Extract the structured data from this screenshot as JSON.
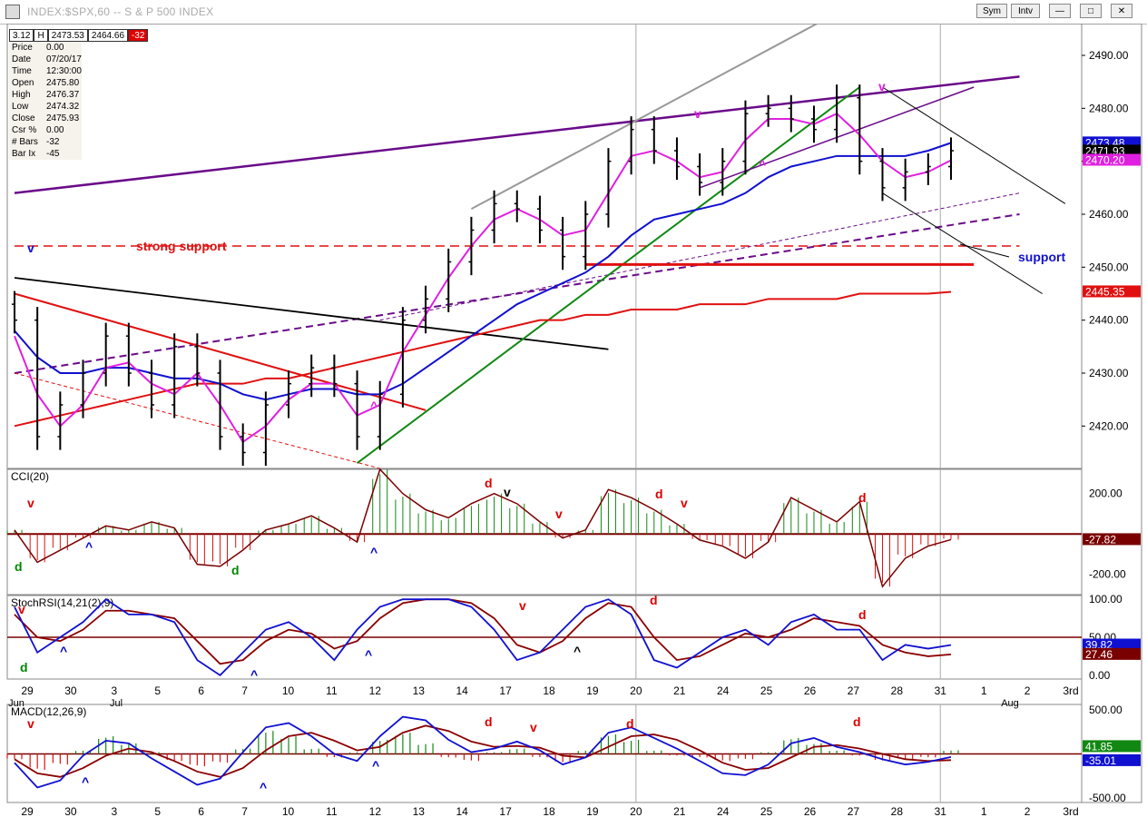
{
  "window": {
    "title": "INDEX:$SPX,60 -- S & P 500 INDEX",
    "buttons": [
      "Sym",
      "Intv"
    ]
  },
  "header_values": [
    "3.12",
    "H",
    "2473.53",
    "2464.66",
    "-32"
  ],
  "info": [
    {
      "label": "Price",
      "value": "0.00"
    },
    {
      "label": "Date",
      "value": "07/20/17"
    },
    {
      "label": "Time",
      "value": "12:30:00"
    },
    {
      "label": "Open",
      "value": "2475.80"
    },
    {
      "label": "High",
      "value": "2476.37"
    },
    {
      "label": "Low",
      "value": "2474.32"
    },
    {
      "label": "Close",
      "value": "2475.93"
    },
    {
      "label": "Csr %",
      "value": "0.00"
    },
    {
      "label": "# Bars",
      "value": "-32"
    },
    {
      "label": "Bar Ix",
      "value": "-45"
    }
  ],
  "colors": {
    "price": "#000000",
    "ma_fast": "#e020e0",
    "ma_mid": "#1010d0",
    "ma_slow": "#e01010",
    "channel": "#6a0a8a",
    "trend": "#118811",
    "hist_up": "#118811",
    "hist_down": "#dd1111",
    "signal": "#8b0000",
    "axis_tag_dark": "#7a0000"
  },
  "chart_data": [
    {
      "type": "line",
      "title": "INDEX:$SPX,60 -- S & P 500 INDEX",
      "ylim": [
        2412,
        2496
      ],
      "yticks": [
        "2490.00",
        "2480.00",
        "2470.00",
        "2460.00",
        "2450.00",
        "2440.00",
        "2430.00",
        "2420.00"
      ],
      "ytick_values": [
        2490,
        2480,
        2470,
        2460,
        2450,
        2440,
        2430,
        2420
      ],
      "xticks": [
        "29",
        "30",
        "3",
        "5",
        "6",
        "7",
        "10",
        "11",
        "12",
        "13",
        "14",
        "17",
        "18",
        "19",
        "20",
        "21",
        "24",
        "25",
        "26",
        "27",
        "28",
        "31",
        "1",
        "2",
        "3rd"
      ],
      "months": [
        "Jun",
        "Jul",
        "Aug"
      ],
      "axis_tags": [
        {
          "text": "2473.48",
          "value": 2473.48,
          "color": "#1010d0"
        },
        {
          "text": "2471.93",
          "value": 2471.93,
          "color": "#ffffff"
        },
        {
          "text": "2470.20",
          "value": 2470.2,
          "color": "#e020e0"
        },
        {
          "text": "2445.35",
          "value": 2445.35,
          "color": "#e01010"
        }
      ],
      "annotations": [
        {
          "text": "strong support",
          "color": "#dd1111"
        },
        {
          "text": "support",
          "color": "#1010d0"
        },
        {
          "text": "v",
          "color": "#1010d0"
        },
        {
          "text": "^",
          "color": "#e020e0"
        },
        {
          "text": "v",
          "color": "#e020e0"
        },
        {
          "text": "^",
          "color": "#e020e0"
        },
        {
          "text": "v",
          "color": "#e020e0"
        }
      ],
      "series": [
        {
          "values_hint": "hourly OHLC bars",
          "close": [
            2440,
            2418,
            2424,
            2430,
            2437,
            2430,
            2424,
            2435,
            2430,
            2418,
            2415,
            2424,
            2428,
            2431,
            2428,
            2418,
            2426,
            2440,
            2444,
            2451,
            2457,
            2462,
            2461,
            2457,
            2452,
            2460,
            2470,
            2476,
            2472,
            2469,
            2466,
            2470,
            2479,
            2480,
            2478,
            2476,
            2482,
            2470,
            2465,
            2468,
            2469,
            2472
          ]
        },
        {
          "values": [
            2437,
            2426,
            2420,
            2424,
            2431,
            2432,
            2428,
            2426,
            2430,
            2424,
            2417,
            2420,
            2425,
            2428,
            2428,
            2422,
            2424,
            2434,
            2441,
            2448,
            2454,
            2459,
            2461,
            2459,
            2456,
            2457,
            2464,
            2471,
            2472,
            2470,
            2467,
            2468,
            2474,
            2478,
            2478,
            2477,
            2479,
            2475,
            2470,
            2467,
            2468,
            2470.2
          ]
        },
        {
          "values": [
            2438,
            2433,
            2430,
            2430,
            2431,
            2431,
            2430,
            2429,
            2429,
            2428,
            2426,
            2425,
            2426,
            2427,
            2427,
            2426,
            2426,
            2428,
            2431,
            2434,
            2437,
            2440,
            2443,
            2445,
            2447,
            2449,
            2452,
            2456,
            2459,
            2460,
            2461,
            2462,
            2464,
            2467,
            2469,
            2470,
            2471,
            2471,
            2471,
            2471,
            2472,
            2473.48
          ]
        },
        {
          "values": [
            2420,
            2421,
            2422,
            2423,
            2424,
            2425,
            2426,
            2427,
            2428,
            2428,
            2428,
            2429,
            2429,
            2430,
            2431,
            2432,
            2433,
            2434,
            2435,
            2436,
            2437,
            2438,
            2439,
            2440,
            2440,
            2441,
            2441,
            2442,
            2442,
            2442,
            2443,
            2443,
            2443,
            2444,
            2444,
            2444,
            2444,
            2445,
            2445,
            2445,
            2445,
            2445.35
          ]
        }
      ]
    },
    {
      "type": "bar",
      "title": "CCI(20)",
      "yticks": [
        "200.00",
        "-200.00"
      ],
      "ytick_values": [
        200,
        -200
      ],
      "ylim": [
        -300,
        320
      ],
      "axis_tags": [
        {
          "text": "-27.82",
          "value": -27.82
        }
      ],
      "annotations": [
        "v",
        "d",
        "^",
        "d",
        "^",
        "d",
        "v",
        "v",
        "d",
        "v",
        "d"
      ],
      "values": [
        20,
        -140,
        -80,
        -20,
        40,
        20,
        60,
        30,
        -150,
        -160,
        -80,
        20,
        50,
        90,
        30,
        -40,
        320,
        200,
        120,
        80,
        150,
        200,
        150,
        60,
        -20,
        20,
        220,
        180,
        120,
        50,
        -30,
        -60,
        -120,
        -40,
        180,
        120,
        60,
        160,
        -260,
        -120,
        -60,
        -27.82
      ]
    },
    {
      "type": "line",
      "title": "StochRSI(14,21(2),9)",
      "yticks": [
        "100.00",
        "50.00",
        "0.00"
      ],
      "ytick_values": [
        100,
        50,
        0
      ],
      "ylim": [
        -5,
        105
      ],
      "axis_tags": [
        {
          "text": "39.82",
          "value": 39.82
        },
        {
          "text": "27.46",
          "value": 27.46
        }
      ],
      "annotations": [
        "v",
        "d",
        "^",
        "^",
        "^",
        "v",
        "^",
        "d",
        "d"
      ],
      "series": [
        {
          "values": [
            90,
            30,
            50,
            70,
            100,
            80,
            80,
            70,
            20,
            0,
            30,
            60,
            70,
            50,
            20,
            60,
            90,
            100,
            100,
            100,
            90,
            60,
            20,
            30,
            60,
            90,
            100,
            80,
            20,
            10,
            30,
            50,
            60,
            40,
            70,
            80,
            60,
            60,
            20,
            40,
            35,
            39.82
          ]
        },
        {
          "values": [
            80,
            50,
            45,
            60,
            85,
            85,
            80,
            75,
            45,
            15,
            20,
            45,
            60,
            55,
            35,
            45,
            75,
            95,
            100,
            100,
            95,
            75,
            40,
            30,
            45,
            75,
            95,
            90,
            50,
            20,
            25,
            40,
            55,
            50,
            60,
            75,
            70,
            65,
            40,
            30,
            25,
            27.46
          ]
        }
      ]
    },
    {
      "type": "bar",
      "title": "MACD(12,26,9)",
      "yticks": [
        "500.00",
        "-500.00"
      ],
      "ytick_values": [
        500,
        -500
      ],
      "ylim": [
        -550,
        560
      ],
      "axis_tags": [
        {
          "text": "41.85",
          "value": 41.85
        },
        {
          "text": "-35.01",
          "value": -35.01
        }
      ],
      "annotations": [
        "v",
        "^",
        "^",
        "^",
        "d",
        "v",
        "d",
        "d"
      ],
      "histogram": [
        -60,
        -180,
        -120,
        40,
        200,
        120,
        20,
        -80,
        -140,
        -100,
        60,
        260,
        200,
        60,
        -40,
        20,
        160,
        240,
        120,
        -40,
        -80,
        20,
        60,
        -40,
        -100,
        40,
        220,
        160,
        40,
        -20,
        -40,
        -80,
        -60,
        20,
        180,
        120,
        40,
        -20,
        -80,
        -60,
        -40,
        41.85
      ],
      "macd": [
        -100,
        -380,
        -300,
        -20,
        150,
        120,
        -50,
        -200,
        -350,
        -280,
        20,
        300,
        350,
        200,
        0,
        -80,
        200,
        420,
        380,
        160,
        20,
        60,
        140,
        40,
        -120,
        -40,
        240,
        300,
        180,
        60,
        -80,
        -220,
        -240,
        -120,
        120,
        180,
        80,
        20,
        -60,
        -120,
        -90,
        -35.01
      ],
      "signal": [
        -60,
        -220,
        -260,
        -160,
        -20,
        60,
        20,
        -80,
        -200,
        -260,
        -160,
        40,
        200,
        240,
        150,
        40,
        80,
        240,
        320,
        260,
        140,
        80,
        90,
        70,
        -20,
        -40,
        80,
        200,
        220,
        160,
        40,
        -100,
        -180,
        -160,
        -40,
        80,
        100,
        60,
        0,
        -60,
        -80,
        -70
      ]
    }
  ]
}
